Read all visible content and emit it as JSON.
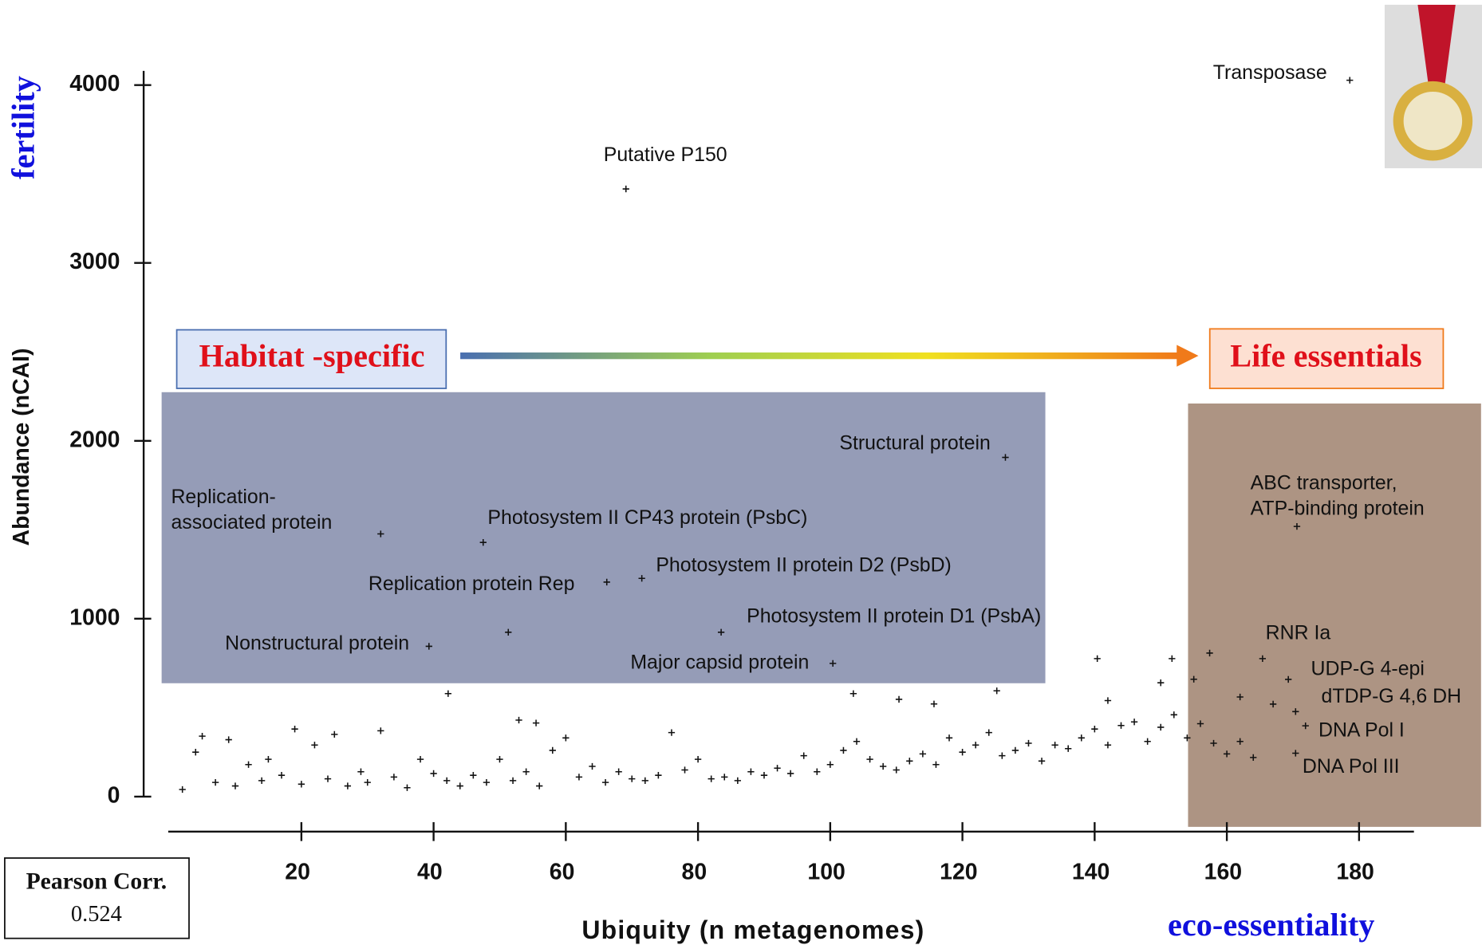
{
  "chart_data": {
    "type": "scatter",
    "xlabel": "Ubiquity (n metagenomes)",
    "ylabel": "Abundance (nCAI)",
    "left_tag": "fertility",
    "bottom_tag": "eco-essentiality",
    "left_box": "Habitat -specific",
    "right_box": "Life essentials",
    "stat_label": "Pearson Corr.",
    "stat_value": "0.524",
    "xlim": [
      0,
      188
    ],
    "ylim": [
      0,
      4080
    ],
    "xticks": [
      20,
      40,
      60,
      80,
      100,
      120,
      140,
      160,
      180
    ],
    "yticks": [
      0,
      1000,
      2000,
      3000,
      4000
    ],
    "color": "#111111",
    "x": [
      2,
      4,
      5,
      7,
      9,
      10,
      12,
      14,
      15,
      17,
      19,
      20,
      22,
      24,
      25,
      27,
      29,
      30,
      32,
      34,
      36,
      38,
      40,
      42,
      44,
      46,
      48,
      50,
      52,
      54,
      56,
      58,
      60,
      62,
      64,
      66,
      68,
      70,
      72,
      74,
      76,
      78,
      80,
      82,
      84,
      86,
      88,
      90,
      92,
      94,
      96,
      98,
      100,
      102,
      104,
      106,
      108,
      110,
      112,
      114,
      116,
      118,
      120,
      122,
      124,
      126,
      128,
      130,
      132,
      134,
      136,
      138,
      140,
      142,
      144,
      146,
      148,
      150,
      152,
      154,
      156,
      158,
      160,
      162,
      164,
      42.2,
      52.9,
      55.5,
      51.3,
      103.5,
      110.4,
      115.7,
      125.2,
      140.4,
      151.7,
      157.4,
      142,
      150,
      155,
      162,
      167
    ],
    "y": [
      40,
      250,
      340,
      80,
      320,
      60,
      180,
      90,
      210,
      120,
      380,
      70,
      290,
      100,
      350,
      60,
      140,
      80,
      370,
      110,
      50,
      210,
      130,
      90,
      60,
      120,
      80,
      210,
      90,
      140,
      60,
      260,
      330,
      110,
      170,
      80,
      140,
      100,
      90,
      120,
      360,
      150,
      210,
      100,
      110,
      90,
      140,
      120,
      160,
      130,
      230,
      140,
      180,
      260,
      310,
      210,
      170,
      150,
      200,
      240,
      180,
      330,
      250,
      290,
      360,
      230,
      260,
      300,
      200,
      290,
      270,
      330,
      380,
      290,
      400,
      420,
      310,
      390,
      460,
      330,
      410,
      300,
      240,
      310,
      220,
      579,
      430,
      414,
      924,
      579,
      547,
      521,
      595,
      776,
      776,
      807,
      540,
      640,
      660,
      560,
      520
    ],
    "annotations": [
      {
        "lines": [
          "Transposase"
        ],
        "x": 178.6,
        "y": 4027
      },
      {
        "lines": [
          "Putative P150"
        ],
        "x": 69.1,
        "y": 3416
      },
      {
        "lines": [
          "Structural protein"
        ],
        "x": 126.5,
        "y": 1907
      },
      {
        "lines": [
          "Replication-",
          "associated protein"
        ],
        "x": 32.0,
        "y": 1477
      },
      {
        "lines": [
          "Photosystem II CP43 protein (PsbC)"
        ],
        "x": 47.5,
        "y": 1429
      },
      {
        "lines": [
          "Replication protein Rep"
        ],
        "x": 66.2,
        "y": 1206
      },
      {
        "lines": [
          "Photosystem II protein D2 (PsbD)"
        ],
        "x": 71.5,
        "y": 1227
      },
      {
        "lines": [
          "Photosystem II protein D1 (PsbA)"
        ],
        "x": 83.5,
        "y": 924
      },
      {
        "lines": [
          "Nonstructural protein"
        ],
        "x": 39.3,
        "y": 845
      },
      {
        "lines": [
          "Major capsid protein"
        ],
        "x": 100.4,
        "y": 749
      },
      {
        "lines": [
          "ABC transporter,",
          "ATP-binding protein"
        ],
        "x": 170.6,
        "y": 1519
      },
      {
        "lines": [
          "RNR Ia"
        ],
        "x": 165.4,
        "y": 776
      },
      {
        "lines": [
          "UDP-G 4-epi"
        ],
        "x": 169.3,
        "y": 659
      },
      {
        "lines": [
          "dTDP-G 4,6 DH"
        ],
        "x": 170.4,
        "y": 478
      },
      {
        "lines": [
          "DNA Pol I"
        ],
        "x": 171.9,
        "y": 398
      },
      {
        "lines": [
          "DNA Pol III"
        ],
        "x": 170.4,
        "y": 244
      }
    ]
  }
}
